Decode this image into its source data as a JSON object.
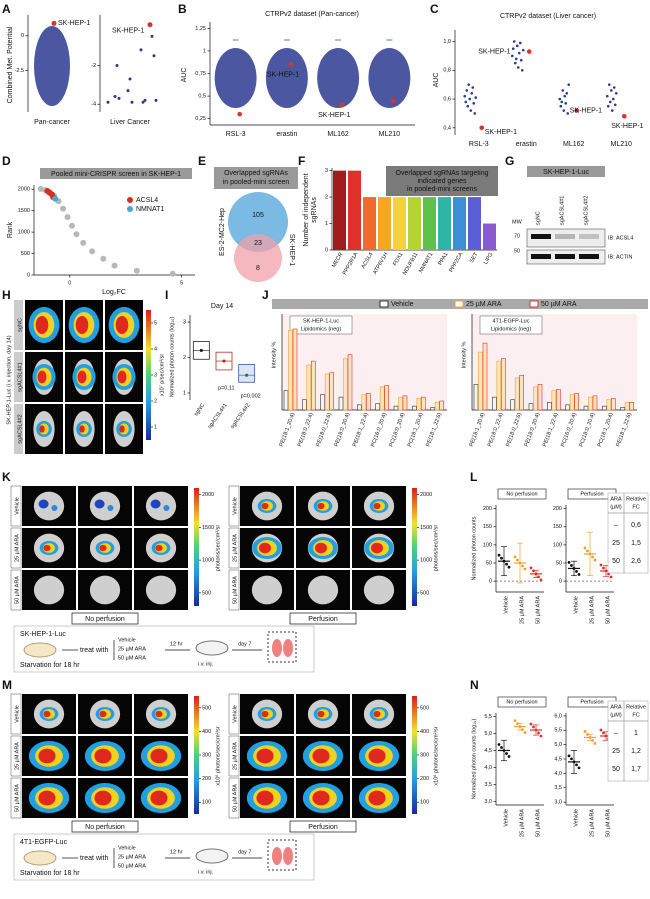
{
  "letters": [
    "A",
    "B",
    "C",
    "D",
    "E",
    "F",
    "G",
    "H",
    "I",
    "J",
    "K",
    "L",
    "M",
    "N"
  ],
  "A": {
    "ylabel": "Combined Met. Potential",
    "highlight_label": "SK-HEP-1",
    "left": {
      "xlabel": "Pan-cancer",
      "ylim": [
        -5.5,
        1.5
      ],
      "yticks": [
        0,
        -2.5
      ],
      "highlight": 0.9
    },
    "right": {
      "xlabel": "Liver Cancer",
      "ylim": [
        -4.4,
        0.6
      ],
      "yticks": [
        -2,
        -4
      ],
      "highlight": 0.1,
      "points": [
        -3.9,
        -3.8,
        -3.9,
        -3.7,
        -3.8,
        -3.9,
        -2.7,
        -2,
        -1.5,
        -1.2,
        -3.3,
        -3.6,
        -0.5
      ]
    }
  },
  "B": {
    "title": "CTRPv2 dataset (Pan-cancer)",
    "ylabel": "AUC",
    "highlight_label": "SK-HEP-1",
    "categories": [
      "RSL-3",
      "erastin",
      "ML162",
      "ML210"
    ],
    "ylim": [
      0.18,
      1.32
    ],
    "yticks": [
      {
        "value": 0.25,
        "label": "0,25"
      },
      {
        "value": 0.5,
        "label": "0,5"
      },
      {
        "value": 0.75,
        "label": "0,75"
      },
      1,
      {
        "value": 1.25,
        "label": "1,25"
      }
    ],
    "highlight": [
      0.3,
      0.85,
      0.4,
      0.45
    ]
  },
  "C": {
    "title": "CTRPv2 dataset (Liver cancer)",
    "ylabel": "AUC",
    "highlight_label": "SK-HEP-1",
    "categories": [
      "RSL-3",
      "erastin",
      "ML162",
      "ML210"
    ],
    "ylim": [
      0.35,
      1.08
    ],
    "yticks": [
      {
        "value": 0.4,
        "label": "0,4"
      },
      {
        "value": 0.6,
        "label": "0,6"
      },
      {
        "value": 0.8,
        "label": "0,8"
      },
      {
        "value": 1.0,
        "label": "1,0"
      }
    ],
    "points": [
      [
        0.62,
        0.58,
        0.66,
        0.55,
        0.7,
        0.6,
        0.52,
        0.64,
        0.68,
        0.57,
        0.5,
        0.61
      ],
      [
        0.9,
        0.95,
        1.0,
        0.85,
        0.88,
        0.97,
        0.82,
        0.92,
        0.99,
        0.87,
        0.8,
        0.94
      ],
      [
        0.6,
        0.55,
        0.58,
        0.66,
        0.52,
        0.62,
        0.57,
        0.64,
        0.5,
        0.7
      ],
      [
        0.62,
        0.55,
        0.7,
        0.58,
        0.66,
        0.52,
        0.6,
        0.68,
        0.56,
        0.64
      ]
    ],
    "highlight": [
      0.4,
      0.93,
      0.52,
      0.48
    ]
  },
  "D": {
    "title": "Pooled mini-CRISPR screen in SK-HEP-1",
    "xlabel": "Log₂FC",
    "ylabel": "Rank",
    "xlim": [
      -1.6,
      5.6
    ],
    "xticks": [
      0,
      5
    ],
    "ylim": [
      0,
      2100
    ],
    "yticks": [
      0,
      500,
      1000,
      1500,
      2000
    ],
    "x": [
      -1.3,
      -1.1,
      -0.9,
      -0.7,
      -0.5,
      -0.3,
      -0.1,
      0.1,
      0.3,
      0.6,
      1.0,
      1.5,
      2.0,
      3.0,
      4.6
    ],
    "y": [
      2010,
      1980,
      1930,
      1850,
      1720,
      1550,
      1350,
      1150,
      950,
      750,
      550,
      380,
      220,
      100,
      30
    ],
    "series": [
      {
        "name": "ACSL4",
        "color": "#d7301f",
        "x": [
          -1.0,
          -0.9,
          -0.8,
          -0.75
        ],
        "y": [
          1960,
          1920,
          1880,
          1820
        ]
      },
      {
        "name": "NMNAT1",
        "color": "#4ba3d8",
        "x": [
          -0.65
        ],
        "y": [
          1780
        ]
      }
    ]
  },
  "E": {
    "title": [
      "Overlapped sgRNAs",
      "in pooled-mini screen"
    ],
    "sets": [
      "ES-2-MC2-Hep",
      "SK-HEP-1"
    ],
    "counts": [
      "105",
      "23",
      "8"
    ]
  },
  "F": {
    "type": "bar",
    "title": [
      "Overlapped sgRNAs targeting",
      "indicated genes",
      "in pooled-mini screens"
    ],
    "ylabel": [
      "Number of independent",
      "sgRNAs"
    ],
    "categories": [
      "MECR",
      "PPP2R1A",
      "ACSL4",
      "ATP6V1H",
      "FDX1",
      "NDUFB11",
      "NMNAT1",
      "PPA1",
      "PPP2CA",
      "SET",
      "LIPG"
    ],
    "values": [
      3,
      3,
      2,
      2,
      2,
      2,
      2,
      2,
      2,
      2,
      1
    ],
    "ylim": [
      0,
      3.1
    ],
    "yticks": [
      0,
      1,
      2,
      3
    ],
    "colors": [
      "#a01c1c",
      "#e0302a",
      "#f06a2a",
      "#f5a623",
      "#f2d43a",
      "#b5d334",
      "#5cc24a",
      "#2fb5a8",
      "#3b8fd6",
      "#5b5ed6",
      "#8a5ad0"
    ],
    "label_colors": [
      "#111",
      "#111",
      "#e0302a",
      "#111",
      "#111",
      "#111",
      "#e0302a",
      "#111",
      "#111",
      "#111",
      "#111"
    ]
  },
  "G": {
    "title": "SK-HEP-1-Luc",
    "lanes": [
      "sgNC",
      "sgACSL4#1",
      "sgACSL4#2"
    ],
    "mw_label": "MW",
    "mw": [
      "70",
      "50"
    ],
    "blots": [
      "IB: ACSL4",
      "IB: ACTIN"
    ]
  },
  "H": {
    "side_label": "SK-HEP-1-Luc (i.v. injection, day 14)",
    "rows": [
      "sgNC",
      "sgACSL4#1",
      "sgACSL4#2"
    ],
    "unit": "x10⁷ p/sec/cm²/sr",
    "colorbar_lim": [
      0.5,
      5.5
    ],
    "colorbar_ticks": [
      1,
      2,
      3,
      4,
      5
    ]
  },
  "I": {
    "title": "Day 14",
    "ylabel": "Normalized photon counts (log₁₀)",
    "categories": [
      "sgNC",
      "sgACSL4#1",
      "sgACSL4#2"
    ],
    "ylim": [
      0.8,
      3.2
    ],
    "yticks": [
      1,
      2,
      3
    ],
    "q1": [
      1.95,
      1.65,
      1.3
    ],
    "median": [
      2.2,
      1.9,
      1.5
    ],
    "q3": [
      2.45,
      2.15,
      1.8
    ],
    "colors": [
      "#222",
      "#b03020",
      "#3a5aa8"
    ],
    "annotations": [
      "",
      "p=0,11",
      "p=0,002"
    ]
  },
  "J": {
    "ylabel": "Intensity %",
    "legend": [
      "Vehicle",
      "25 µM ARA",
      "50 µM ARA"
    ],
    "colors": [
      "#333333",
      "#f0a030",
      "#e0302a"
    ],
    "ylim": [
      0,
      7
    ],
    "categories": [
      "PE(18:1_20:4)",
      "PE(18:0_22:4)",
      "PE(18:0_22:6)",
      "PE(18:0_20:4)",
      "PE(18:1_22:4)",
      "PC(16:0_20:4)",
      "PC(18:0_20:4)",
      "PC(18:1_20:4)",
      "PE(18:1_22:6)"
    ],
    "panels": [
      {
        "title": "SK-HEP-1-Luc",
        "subtitle": "Lipidomics (neg)",
        "series": [
          [
            1.5,
            0.8,
            1.2,
            1.0,
            0.4,
            0.5,
            0.3,
            0.3,
            0.2
          ],
          [
            6.2,
            3.5,
            2.8,
            4.0,
            1.2,
            1.8,
            1.0,
            0.9,
            0.6
          ],
          [
            6.3,
            3.8,
            2.9,
            4.3,
            1.3,
            1.9,
            1.1,
            1.0,
            0.7
          ]
        ]
      },
      {
        "title": "4T1-EGFP-Luc",
        "subtitle": "Lipidomics (neg)",
        "series": [
          [
            2.0,
            1.0,
            0.8,
            0.5,
            0.6,
            0.4,
            0.3,
            0.3,
            0.2
          ],
          [
            4.5,
            3.8,
            2.5,
            1.8,
            1.5,
            1.2,
            1.0,
            0.8,
            0.6
          ],
          [
            5.2,
            4.0,
            2.7,
            2.0,
            1.6,
            1.3,
            1.1,
            0.9,
            0.6
          ]
        ]
      }
    ]
  },
  "K": {
    "rows": [
      "Vehicle",
      "25 µM ARA",
      "50 µM ARA"
    ],
    "conditions": [
      "No perfusion",
      "Perfusion"
    ],
    "unit": "photons/sec/cm²/sr",
    "colorbar_lim": [
      300,
      2100
    ],
    "colorbar_ticks": [
      500,
      1000,
      1500,
      2000
    ],
    "scheme": {
      "cells": "SK-HEP-1-Luc",
      "starve": "Starvation for 18 hr",
      "treat": "treat with",
      "arms": [
        "Vehicle",
        "25 µM ARA",
        "50 µM ARA"
      ],
      "wait": "12 hr",
      "inj": "i.v. inj.",
      "day": "day 7"
    }
  },
  "L": {
    "ylabel": "Normalized photon counts",
    "categories": [
      "Vehicle",
      "25 µM ARA",
      "50 µM ARA"
    ],
    "colors": [
      "#111111",
      "#f0a030",
      "#e0302a"
    ],
    "ylim": [
      -30,
      210
    ],
    "yticks": [
      0,
      50,
      100,
      150,
      200
    ],
    "plots": [
      {
        "title": "No perfusion",
        "means": [
          55,
          50,
          20
        ],
        "sd": [
          40,
          55,
          10
        ]
      },
      {
        "title": "Perfusion",
        "means": [
          35,
          75,
          28
        ],
        "sd": [
          20,
          60,
          15
        ]
      }
    ],
    "table": {
      "header": [
        [
          "ARA",
          "(µM)"
        ],
        [
          "Relative",
          "FC"
        ]
      ],
      "rows": [
        [
          "–",
          "0,6"
        ],
        [
          "25",
          "1,5"
        ],
        [
          "50",
          "2,6"
        ]
      ]
    }
  },
  "M": {
    "rows": [
      "Vehicle",
      "25 µM ARA",
      "50 µM ARA"
    ],
    "conditions": [
      "No perfusion",
      "Perfusion"
    ],
    "unit": "x10⁶ photons/sec/cm²/sr",
    "colorbar_lim": [
      50,
      550
    ],
    "colorbar_ticks": [
      100,
      200,
      300,
      400,
      500
    ],
    "scheme": {
      "cells": "4T1-EGFP-Luc",
      "starve": "Starvation for 18 hr",
      "treat": "treat with",
      "arms": [
        "Vehicle",
        "25 µM ARA",
        "50 µM ARA"
      ],
      "wait": "12 hr",
      "inj": "i.v. inj.",
      "day": "day 7"
    }
  },
  "N": {
    "ylabel": "Normalized photon counts (log₁₀)",
    "categories": [
      "Vehicle",
      "25 µM ARA",
      "50 µM ARA"
    ],
    "colors": [
      "#111111",
      "#f0a030",
      "#e0302a"
    ],
    "plots": [
      {
        "title": "No perfusion",
        "ylim": [
          2.9,
          5.6
        ],
        "yticks": [
          {
            "value": 3,
            "label": "3,0"
          },
          {
            "value": 3.5,
            "label": "3,5"
          },
          {
            "value": 4,
            "label": "4,0"
          },
          {
            "value": 4.5,
            "label": "4,5"
          },
          {
            "value": 5,
            "label": "5,0"
          },
          {
            "value": 5.5,
            "label": "5,5"
          }
        ],
        "means": [
          4.5,
          5.2,
          5.1
        ],
        "sd": [
          0.3,
          0.1,
          0.15
        ]
      },
      {
        "title": "Perfusion",
        "ylim": [
          2.9,
          6.1
        ],
        "yticks": [
          {
            "value": 3,
            "label": "3,0"
          },
          {
            "value": 3.5,
            "label": "3,5"
          },
          {
            "value": 4,
            "label": "4,0"
          },
          {
            "value": 4.5,
            "label": "4,5"
          },
          {
            "value": 5,
            "label": "5,0"
          },
          {
            "value": 5.5,
            "label": "5,5"
          },
          {
            "value": 6,
            "label": "6,0"
          }
        ],
        "means": [
          4.4,
          5.25,
          5.3
        ],
        "sd": [
          0.4,
          0.1,
          0.15
        ]
      }
    ],
    "table": {
      "header": [
        [
          "ARA",
          "(µM)"
        ],
        [
          "Relative",
          "FC"
        ]
      ],
      "rows": [
        [
          "–",
          "1"
        ],
        [
          "25",
          "1,2"
        ],
        [
          "50",
          "1,7"
        ]
      ]
    }
  }
}
